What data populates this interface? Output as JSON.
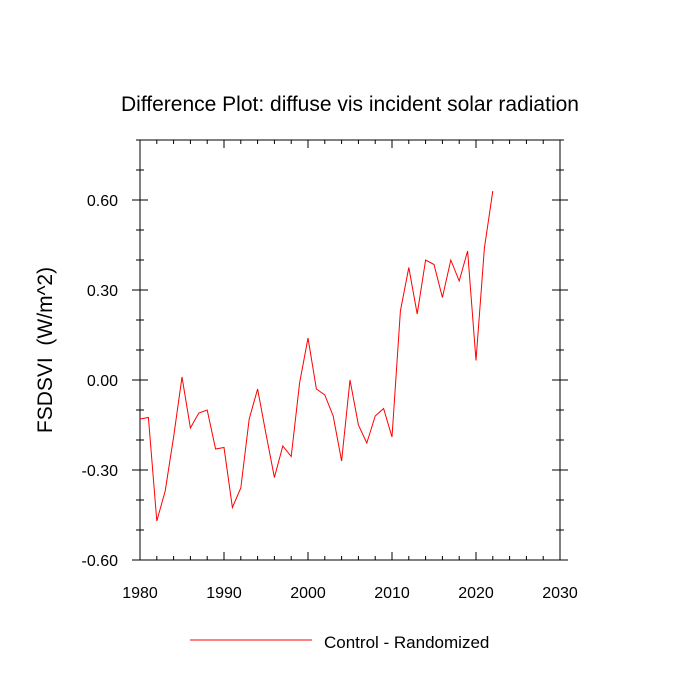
{
  "chart_data": {
    "type": "line",
    "title": "Difference Plot: diffuse vis incident solar radiation",
    "xlabel": "",
    "ylabel": "FSDSVI  (W/m^2)",
    "xlim": [
      1980,
      2030
    ],
    "ylim": [
      -0.6,
      0.8
    ],
    "x_ticks": [
      1980,
      1990,
      2000,
      2010,
      2020,
      2030
    ],
    "x_tick_labels": [
      "1980",
      "1990",
      "2000",
      "2010",
      "2020",
      "2030"
    ],
    "y_ticks": [
      -0.6,
      -0.3,
      0.0,
      0.3,
      0.6
    ],
    "y_tick_labels": [
      "-0.60",
      "-0.30",
      "0.00",
      "0.30",
      "0.60"
    ],
    "legend_placement": "bottom-center",
    "series": [
      {
        "name": "Control - Randomized",
        "color": "#ff0000",
        "x": [
          1980,
          1981,
          1982,
          1983,
          1984,
          1985,
          1986,
          1987,
          1988,
          1989,
          1990,
          1991,
          1992,
          1993,
          1994,
          1995,
          1996,
          1997,
          1998,
          1999,
          2000,
          2001,
          2002,
          2003,
          2004,
          2005,
          2006,
          2007,
          2008,
          2009,
          2010,
          2011,
          2012,
          2013,
          2014,
          2015,
          2016,
          2017,
          2018,
          2019,
          2020,
          2021,
          2022
        ],
        "values": [
          -0.13,
          -0.125,
          -0.47,
          -0.37,
          -0.19,
          0.01,
          -0.16,
          -0.11,
          -0.1,
          -0.23,
          -0.225,
          -0.425,
          -0.36,
          -0.13,
          -0.03,
          -0.18,
          -0.325,
          -0.22,
          -0.255,
          -0.01,
          0.14,
          -0.03,
          -0.05,
          -0.12,
          -0.27,
          0.0,
          -0.15,
          -0.21,
          -0.12,
          -0.095,
          -0.19,
          0.23,
          0.375,
          0.22,
          0.4,
          0.385,
          0.275,
          0.4,
          0.33,
          0.43,
          0.065,
          0.44,
          0.63
        ]
      }
    ]
  }
}
